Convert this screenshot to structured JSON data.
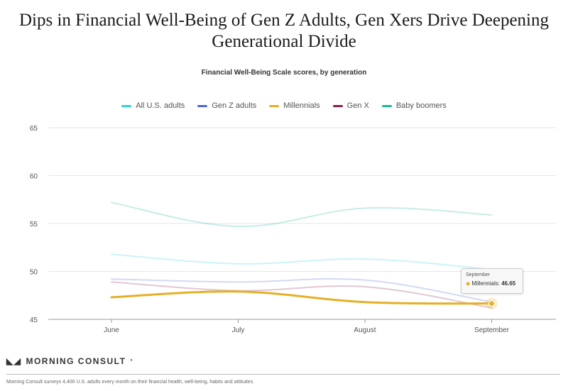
{
  "header": {
    "title_line1": "Dips in Financial Well-Being of Gen Z Adults, Gen Xers Drive Deepening",
    "title_line2": "Generational Divide",
    "subtitle": "Financial Well-Being Scale scores, by generation"
  },
  "chart_data": {
    "type": "line",
    "categories": [
      "June",
      "July",
      "August",
      "September"
    ],
    "ylim": [
      45,
      65
    ],
    "yticks": [
      45,
      50,
      55,
      60,
      65
    ],
    "grid": true,
    "legend_position": "top",
    "series": [
      {
        "name": "All U.S. adults",
        "color": "#2ed3d3",
        "values": [
          51.8,
          50.8,
          51.3,
          50.2
        ],
        "faded": true
      },
      {
        "name": "Gen Z adults",
        "color": "#4f66d6",
        "values": [
          49.2,
          48.9,
          49.1,
          46.8
        ],
        "faded": true
      },
      {
        "name": "Millennials",
        "color": "#e5b026",
        "values": [
          47.3,
          47.9,
          46.8,
          46.65
        ],
        "faded": false
      },
      {
        "name": "Gen X",
        "color": "#8c1f4f",
        "values": [
          48.9,
          48.0,
          48.4,
          46.2
        ],
        "faded": true
      },
      {
        "name": "Baby boomers",
        "color": "#1ab89a",
        "values": [
          57.2,
          54.7,
          56.6,
          55.9
        ],
        "faded": true
      }
    ]
  },
  "tooltip": {
    "month": "September",
    "series_label": "Millennials:",
    "value": "46.65"
  },
  "brand": {
    "name": "MORNING CONSULT",
    "trademark": "°"
  },
  "footer": {
    "note": "Morning Consult surveys 4,400 U.S. adults every month on their financial health, well-being, habits and attitudes."
  }
}
